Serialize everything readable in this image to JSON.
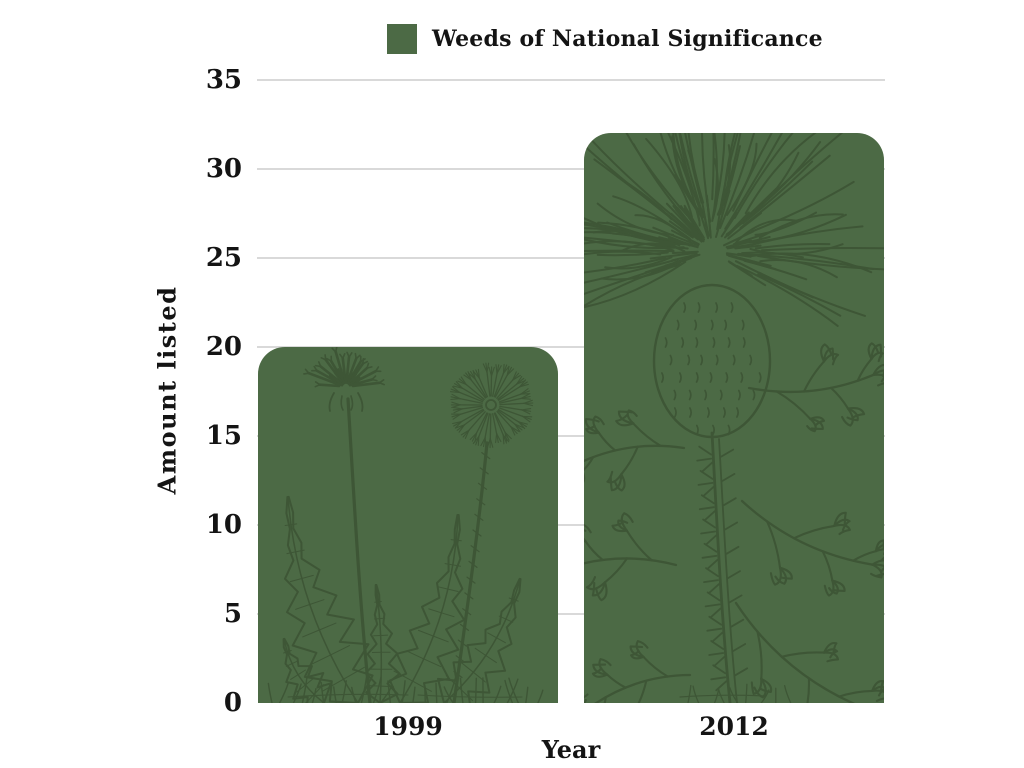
{
  "legend": {
    "label": "Weeds of National Significance"
  },
  "chart_data": {
    "type": "bar",
    "title": "",
    "series_name": "Weeds of National Significance",
    "categories": [
      "1999",
      "2012"
    ],
    "values": [
      20,
      32
    ],
    "xlabel": "Year",
    "ylabel": "Amount listed",
    "ylim": [
      0,
      35
    ],
    "yticks": [
      0,
      5,
      10,
      15,
      20,
      25,
      30,
      35
    ],
    "grid": "horizontal",
    "legend_position": "top-center",
    "bar_color": "#4c6a45",
    "bar_art_stroke": "#3e5636",
    "gridline_color": "#d9d9d9",
    "text_color": "#141414",
    "bar_decorations": [
      "dandelion",
      "thistle"
    ]
  }
}
